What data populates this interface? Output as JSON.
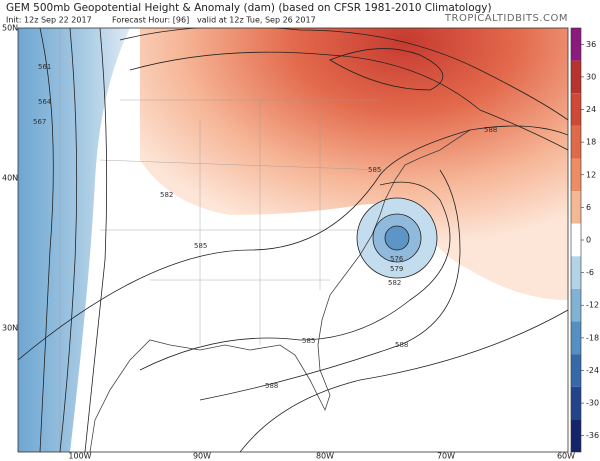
{
  "header": {
    "title": "GEM 500mb Geopotential Height & Anomaly (dam) (based on CFSR 1981-2010 Climatology)",
    "init": "Init: 12z Sep 22 2017",
    "forecast_hour": "Forecast Hour: [96]",
    "valid": "valid at 12z Tue, Sep 26 2017",
    "brand": "TROPICALTIDBITS.COM"
  },
  "map": {
    "lat_labels": [
      "50N",
      "40N",
      "30N"
    ],
    "lon_labels": [
      "100W",
      "90W",
      "80W",
      "70W",
      "60W"
    ],
    "contour_labels": [
      "561",
      "564",
      "567",
      "576",
      "579",
      "582",
      "585",
      "588",
      "585",
      "582",
      "588",
      "585",
      "588"
    ]
  },
  "colorbar": {
    "lim": [
      -39,
      39
    ],
    "ticks": [
      36,
      30,
      24,
      18,
      12,
      6,
      0,
      -6,
      -12,
      -18,
      -24,
      -30,
      -36
    ],
    "colors": [
      "#8a1a7e",
      "#b8322e",
      "#cf4a36",
      "#e06a48",
      "#ec8d66",
      "#f5b895",
      "#ffffff",
      "#b3d3e6",
      "#80b3d6",
      "#5590c2",
      "#3768a8",
      "#23448a",
      "#14236a"
    ]
  }
}
